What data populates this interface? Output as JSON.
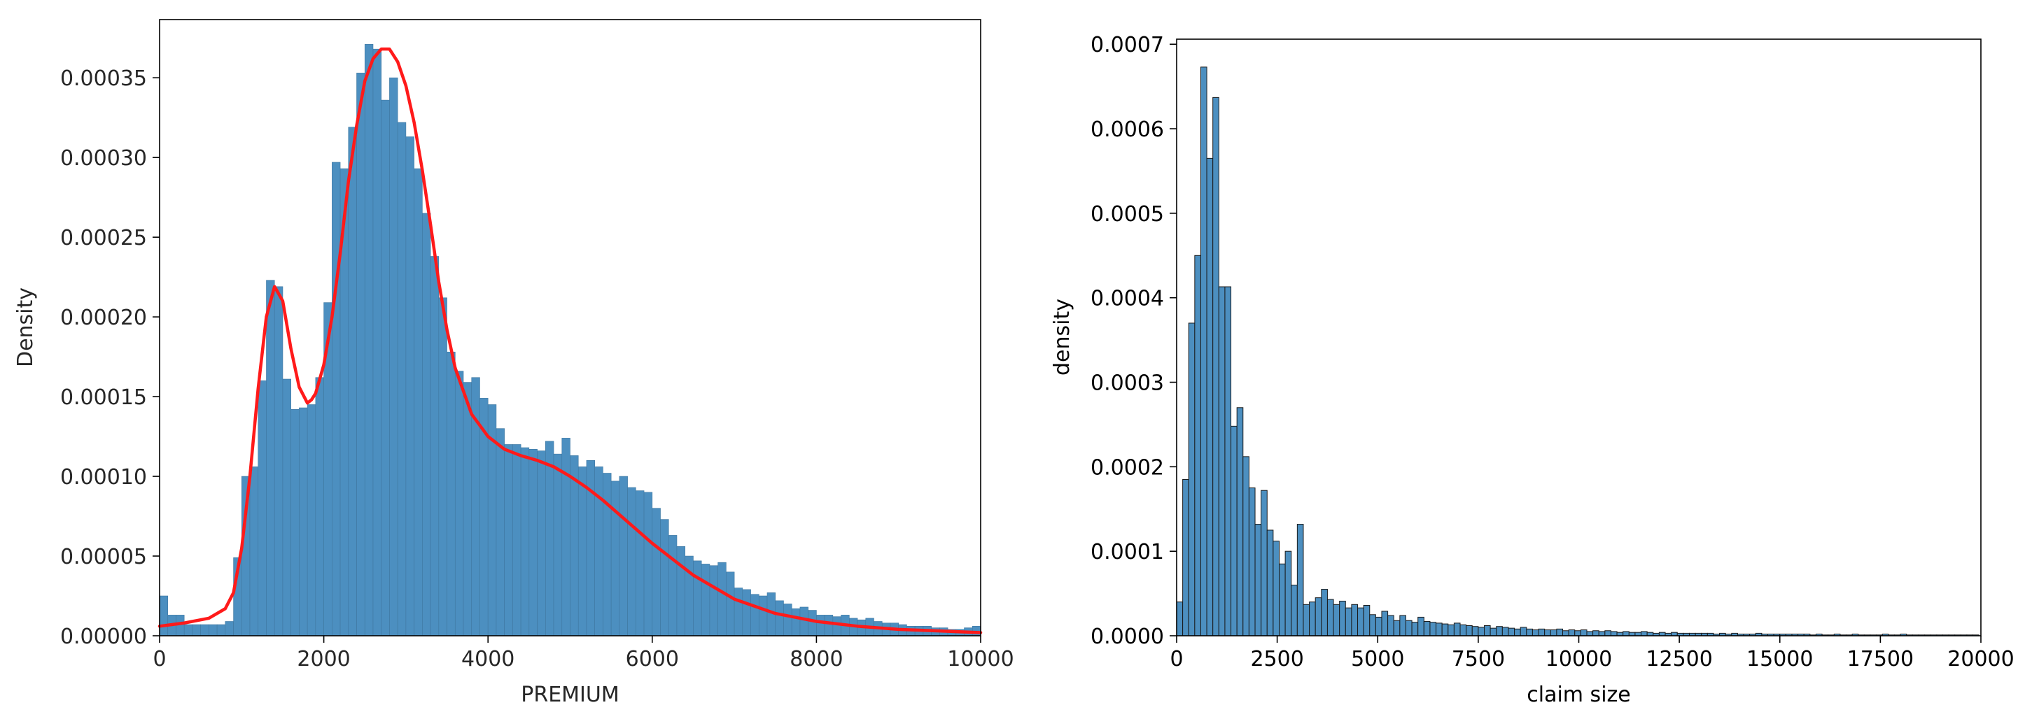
{
  "chart_data": [
    {
      "type": "bar",
      "title": "",
      "xlabel": "PREMIUM",
      "ylabel": "Density",
      "xlim": [
        0,
        10000
      ],
      "ylim": [
        0,
        0.0003865
      ],
      "xticks": [
        0,
        2000,
        4000,
        6000,
        8000,
        10000
      ],
      "xtick_labels": [
        "0",
        "2000",
        "4000",
        "6000",
        "8000",
        "10000"
      ],
      "yticks": [
        0,
        5e-05,
        0.0001,
        0.00015,
        0.0002,
        0.00025,
        0.0003,
        0.00035
      ],
      "ytick_labels": [
        "0.00000",
        "0.00005",
        "0.00010",
        "0.00015",
        "0.00020",
        "0.00025",
        "0.00030",
        "0.00035"
      ],
      "grid": false,
      "bar_color": "#4c8fc0",
      "bar_edge_color": "#3f77a0",
      "bin_width": 100,
      "bin_start": 0,
      "values": [
        2.5e-05,
        1.3e-05,
        1.3e-05,
        7e-06,
        7e-06,
        7e-06,
        7e-06,
        7e-06,
        9e-06,
        4.9e-05,
        0.0001,
        0.000106,
        0.00016,
        0.000223,
        0.000219,
        0.000161,
        0.000142,
        0.000143,
        0.000145,
        0.000162,
        0.000209,
        0.000297,
        0.000293,
        0.000319,
        0.000353,
        0.000371,
        0.000368,
        0.000336,
        0.00035,
        0.000322,
        0.000313,
        0.000293,
        0.000265,
        0.000238,
        0.000212,
        0.000178,
        0.000166,
        0.000159,
        0.000162,
        0.000149,
        0.000145,
        0.00013,
        0.00012,
        0.00012,
        0.000118,
        0.000117,
        0.000116,
        0.000122,
        0.000114,
        0.000124,
        0.000113,
        0.000106,
        0.00011,
        0.000106,
        0.000102,
        9.7e-05,
        0.0001,
        9.3e-05,
        9.1e-05,
        9e-05,
        8e-05,
        7.3e-05,
        6.3e-05,
        5.6e-05,
        5e-05,
        4.7e-05,
        4.5e-05,
        4.4e-05,
        4.6e-05,
        4e-05,
        3e-05,
        2.9e-05,
        2.6e-05,
        2.5e-05,
        2.7e-05,
        2.2e-05,
        2e-05,
        1.7e-05,
        1.8e-05,
        1.6e-05,
        1.3e-05,
        1.3e-05,
        1.2e-05,
        1.3e-05,
        1.1e-05,
        1e-05,
        1.1e-05,
        9e-06,
        8e-06,
        8e-06,
        7e-06,
        6e-06,
        6e-06,
        6e-06,
        5e-06,
        5e-06,
        4e-06,
        4e-06,
        5e-06,
        6e-06
      ],
      "curve": {
        "color": "#ff1a1a",
        "x": [
          0,
          300,
          600,
          800,
          900,
          1000,
          1100,
          1200,
          1300,
          1400,
          1500,
          1600,
          1700,
          1800,
          1850,
          1900,
          2000,
          2100,
          2200,
          2300,
          2400,
          2500,
          2600,
          2700,
          2800,
          2900,
          3000,
          3100,
          3200,
          3300,
          3400,
          3500,
          3600,
          3800,
          4000,
          4200,
          4400,
          4600,
          4800,
          5000,
          5200,
          5400,
          5600,
          5800,
          6000,
          6500,
          7000,
          7500,
          8000,
          8500,
          9000,
          9500,
          10000
        ],
        "y": [
          6e-06,
          8e-06,
          1.1e-05,
          1.7e-05,
          2.7e-05,
          5.5e-05,
          0.0001,
          0.000155,
          0.0002,
          0.000219,
          0.00021,
          0.00018,
          0.000156,
          0.000146,
          0.000148,
          0.000152,
          0.00017,
          0.0002,
          0.00024,
          0.000285,
          0.00032,
          0.000348,
          0.000362,
          0.000368,
          0.000368,
          0.00036,
          0.000345,
          0.000322,
          0.000292,
          0.000258,
          0.000222,
          0.000192,
          0.000168,
          0.000139,
          0.000125,
          0.000117,
          0.000113,
          0.00011,
          0.000106,
          0.0001,
          9.3e-05,
          8.5e-05,
          7.6e-05,
          6.7e-05,
          5.8e-05,
          3.8e-05,
          2.3e-05,
          1.4e-05,
          9e-06,
          6e-06,
          4e-06,
          3e-06,
          2e-06
        ]
      }
    },
    {
      "type": "bar",
      "title": "",
      "xlabel": "claim size",
      "ylabel": "density",
      "xlim": [
        0,
        20000
      ],
      "ylim": [
        0,
        0.000706
      ],
      "xticks": [
        0,
        2500,
        5000,
        7500,
        10000,
        12500,
        15000,
        17500,
        20000
      ],
      "xtick_labels": [
        "0",
        "2500",
        "5000",
        "7500",
        "10000",
        "12500",
        "15000",
        "17500",
        "20000"
      ],
      "yticks": [
        0,
        0.0001,
        0.0002,
        0.0003,
        0.0004,
        0.0005,
        0.0006,
        0.0007
      ],
      "ytick_labels": [
        "0.0000",
        "0.0001",
        "0.0002",
        "0.0003",
        "0.0004",
        "0.0005",
        "0.0006",
        "0.0007"
      ],
      "grid": false,
      "bar_color": "#4c8fc0",
      "bar_edge_color": "#1a1a1a",
      "bin_width": 150,
      "bin_start": 0,
      "values": [
        4e-05,
        0.000185,
        0.00037,
        0.00045,
        0.000673,
        0.000565,
        0.000637,
        0.000413,
        0.000413,
        0.000248,
        0.00027,
        0.000212,
        0.000175,
        0.000132,
        0.000172,
        0.000125,
        0.000112,
        8.5e-05,
        0.0001,
        6e-05,
        0.000132,
        3.7e-05,
        4e-05,
        4.5e-05,
        5.5e-05,
        4.3e-05,
        3.7e-05,
        4.1e-05,
        3.3e-05,
        3.7e-05,
        3.3e-05,
        3.6e-05,
        2.5e-05,
        2.2e-05,
        2.9e-05,
        2.4e-05,
        1.8e-05,
        2.4e-05,
        1.8e-05,
        1.6e-05,
        2.2e-05,
        1.7e-05,
        1.6e-05,
        1.5e-05,
        1.4e-05,
        1.3e-05,
        1.5e-05,
        1.3e-05,
        1.2e-05,
        1.1e-05,
        1e-05,
        1.2e-05,
        9e-06,
        1.1e-05,
        1e-05,
        9e-06,
        8e-06,
        1e-05,
        8e-06,
        7e-06,
        8e-06,
        7e-06,
        7e-06,
        8e-06,
        6e-06,
        7e-06,
        6e-06,
        7e-06,
        5e-06,
        6e-06,
        5e-06,
        6e-06,
        5e-06,
        4e-06,
        5e-06,
        4e-06,
        4e-06,
        5e-06,
        4e-06,
        3e-06,
        4e-06,
        3e-06,
        4e-06,
        3e-06,
        3e-06,
        3e-06,
        3e-06,
        3e-06,
        3e-06,
        2e-06,
        3e-06,
        2e-06,
        3e-06,
        2e-06,
        2e-06,
        2e-06,
        3e-06,
        2e-06,
        2e-06,
        2e-06,
        2e-06,
        2e-06,
        2e-06,
        2e-06,
        2e-06,
        1e-06,
        2e-06,
        1e-06,
        1e-06,
        2e-06,
        1e-06,
        1e-06,
        2e-06,
        1e-06,
        1e-06,
        1e-06,
        1e-06,
        2e-06,
        1e-06,
        1e-06,
        2e-06,
        1e-06,
        1e-06,
        1e-06,
        1e-06,
        1e-06,
        1e-06,
        1e-06,
        1e-06,
        1e-06,
        1e-06,
        1e-06,
        1e-06
      ]
    }
  ]
}
